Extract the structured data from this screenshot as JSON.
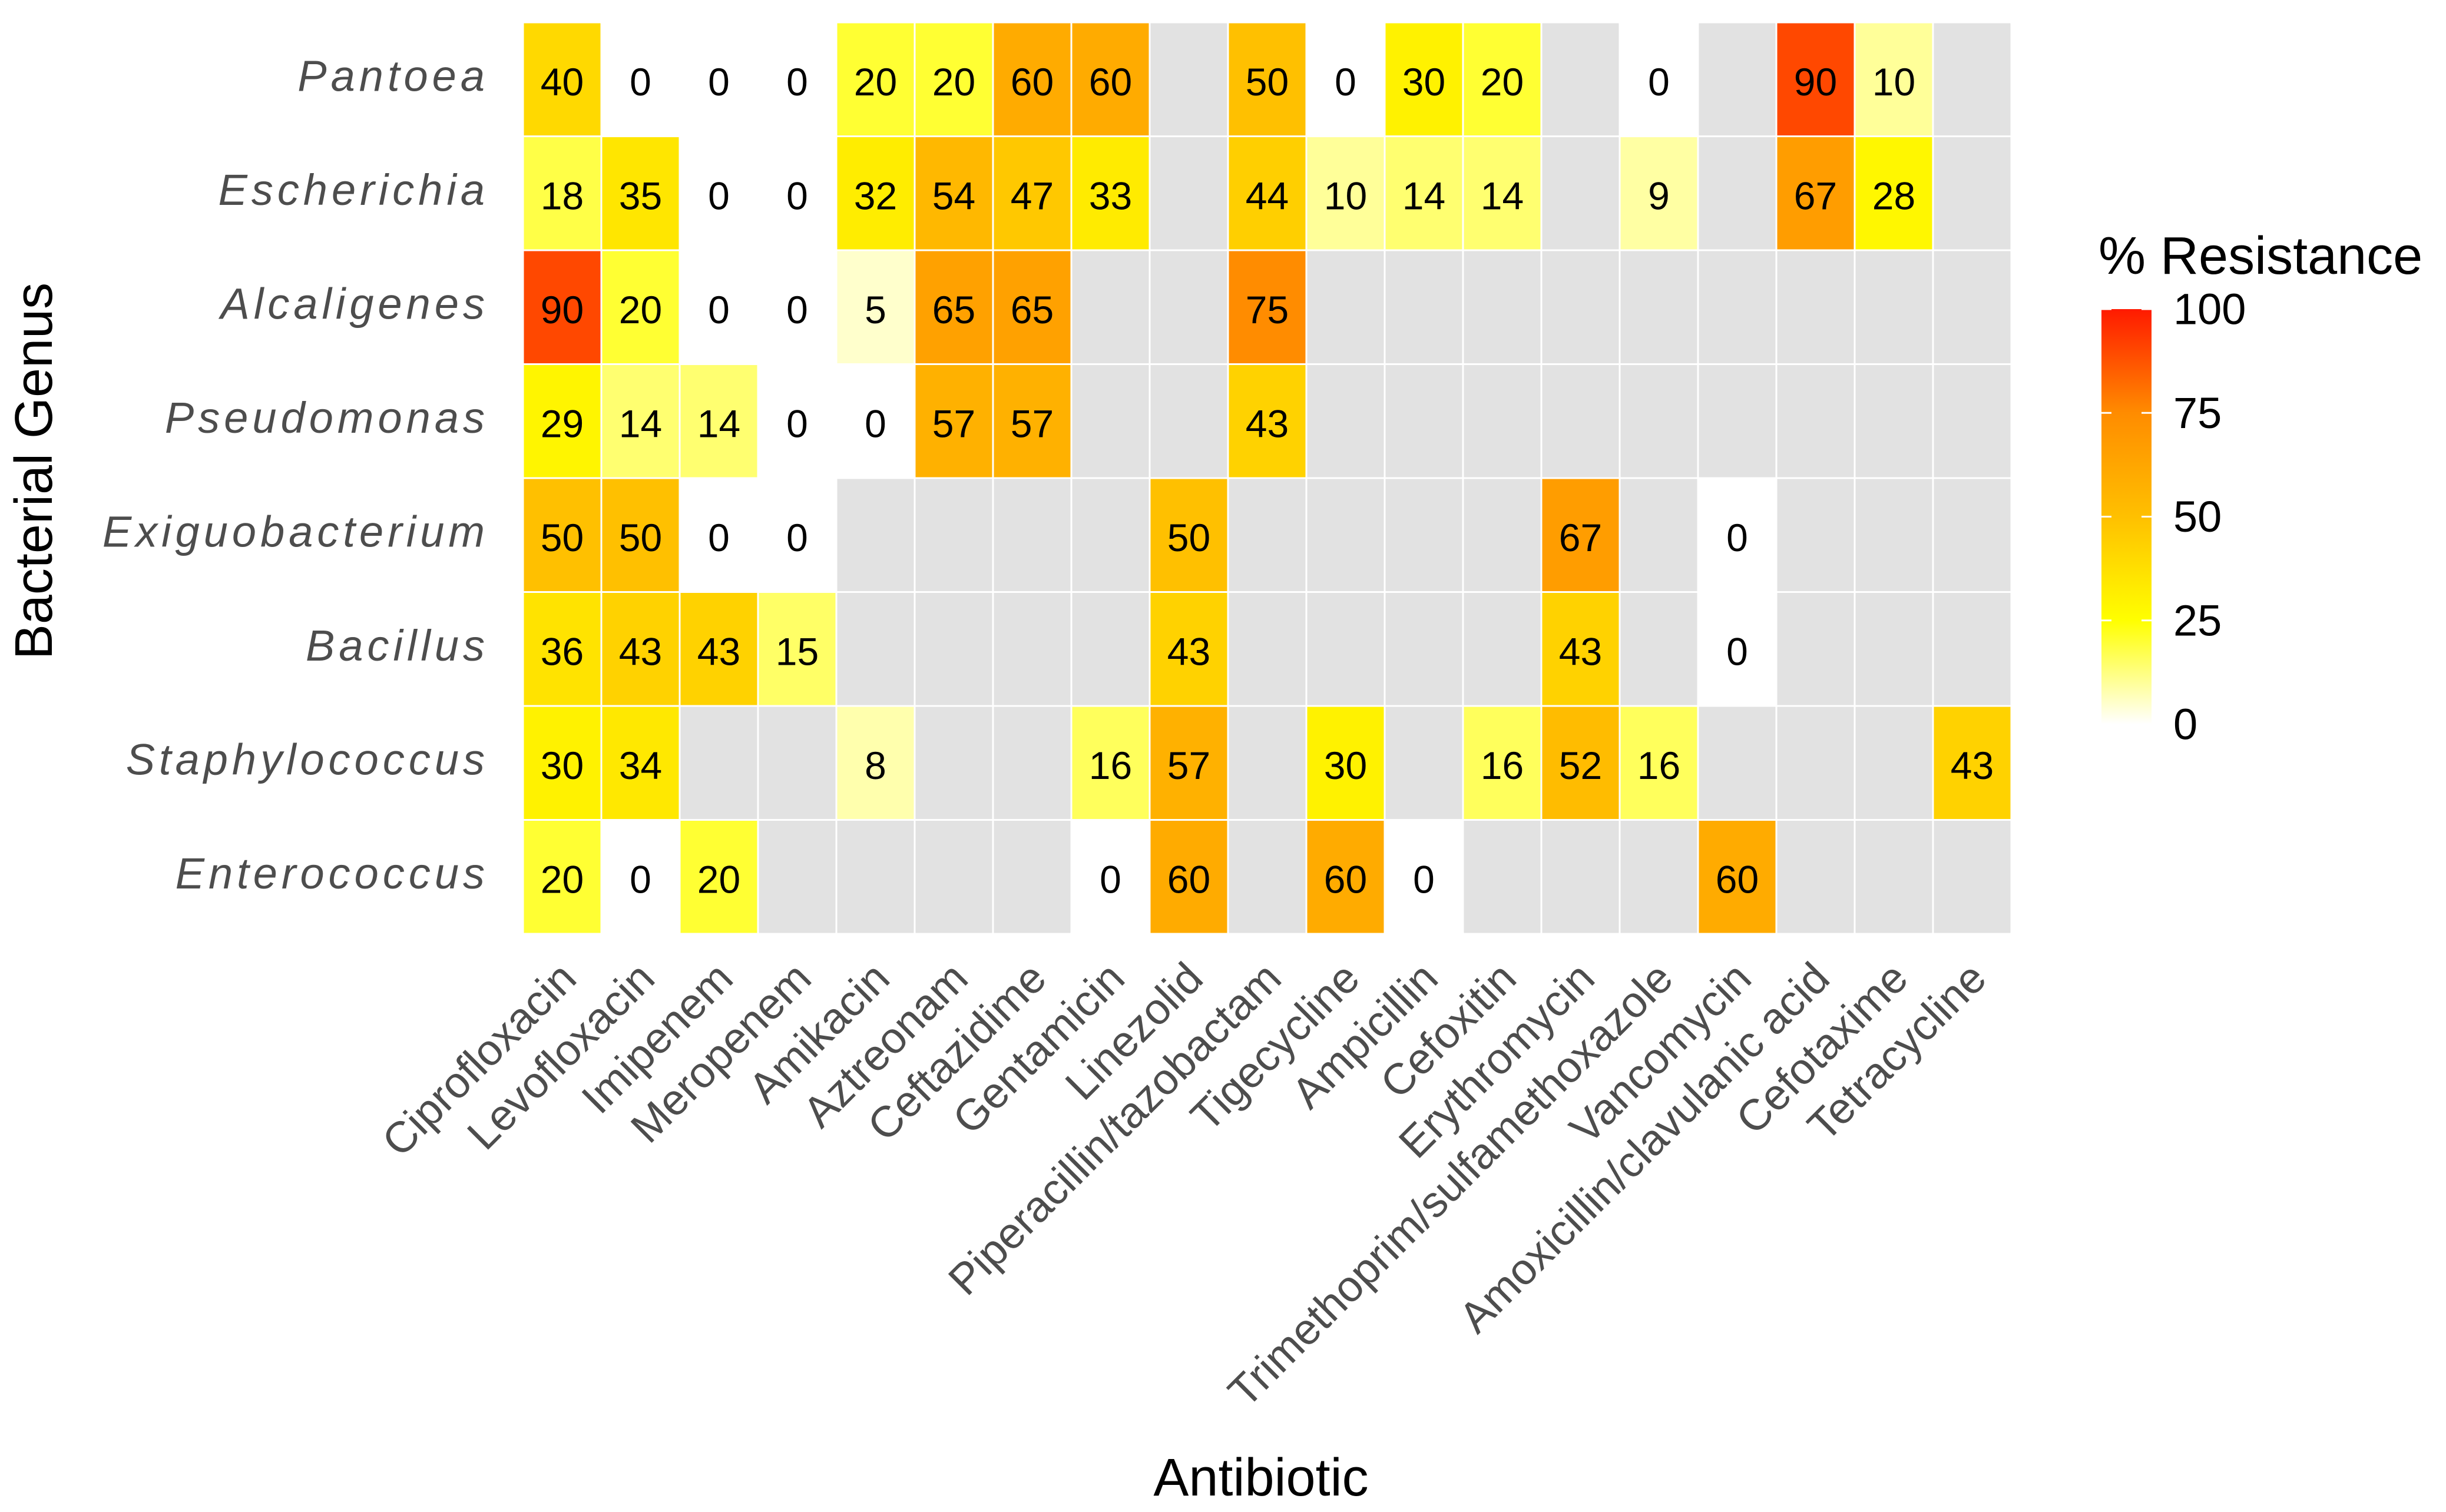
{
  "chart_data": {
    "type": "heatmap",
    "xlabel": "Antibiotic",
    "ylabel": "Bacterial Genus",
    "x_categories": [
      "Ciprofloxacin",
      "Levofloxacin",
      "Imipenem",
      "Meropenem",
      "Amikacin",
      "Aztreonam",
      "Ceftazidime",
      "Gentamicin",
      "Linezolid",
      "Piperacillin/tazobactam",
      "Tigecycline",
      "Ampicillin",
      "Cefoxitin",
      "Erythromycin",
      "Trimethoprim/sulfamethoxazole",
      "Vancomycin",
      "Amoxicillin/clavulanic acid",
      "Cefotaxime",
      "Tetracycline"
    ],
    "y_categories": [
      "Pantoea",
      "Escherichia",
      "Alcaligenes",
      "Pseudomonas",
      "Exiguobacterium",
      "Bacillus",
      "Staphylococcus",
      "Enterococcus"
    ],
    "values": [
      [
        40,
        0,
        0,
        0,
        20,
        20,
        60,
        60,
        null,
        50,
        0,
        30,
        20,
        null,
        0,
        null,
        90,
        10,
        null
      ],
      [
        18,
        35,
        0,
        0,
        32,
        54,
        47,
        33,
        null,
        44,
        10,
        14,
        14,
        null,
        9,
        null,
        67,
        28,
        null
      ],
      [
        90,
        20,
        0,
        0,
        5,
        65,
        65,
        null,
        null,
        75,
        null,
        null,
        null,
        null,
        null,
        null,
        null,
        null,
        null
      ],
      [
        29,
        14,
        14,
        0,
        0,
        57,
        57,
        null,
        null,
        43,
        null,
        null,
        null,
        null,
        null,
        null,
        null,
        null,
        null
      ],
      [
        50,
        50,
        0,
        0,
        null,
        null,
        null,
        null,
        50,
        null,
        null,
        null,
        null,
        67,
        null,
        0,
        null,
        null,
        null
      ],
      [
        36,
        43,
        43,
        15,
        null,
        null,
        null,
        null,
        43,
        null,
        null,
        null,
        null,
        43,
        null,
        0,
        null,
        null,
        null
      ],
      [
        30,
        34,
        null,
        null,
        8,
        null,
        null,
        16,
        57,
        null,
        30,
        null,
        16,
        52,
        16,
        null,
        null,
        null,
        43
      ],
      [
        20,
        0,
        20,
        null,
        null,
        null,
        null,
        0,
        60,
        null,
        60,
        0,
        null,
        null,
        null,
        60,
        null,
        null,
        null
      ]
    ],
    "missing_color": "#e2e2e2",
    "legend": {
      "title": "% Resistance",
      "range": [
        0,
        100
      ],
      "ticks": [
        "0",
        "25",
        "50",
        "75",
        "100"
      ],
      "placement": "right",
      "color_stops": [
        {
          "value": 0,
          "color": "#ffffff"
        },
        {
          "value": 25,
          "color": "#ffff00"
        },
        {
          "value": 50,
          "color": "#ffc000"
        },
        {
          "value": 75,
          "color": "#ff8c00"
        },
        {
          "value": 100,
          "color": "#ff1a00"
        }
      ]
    }
  }
}
